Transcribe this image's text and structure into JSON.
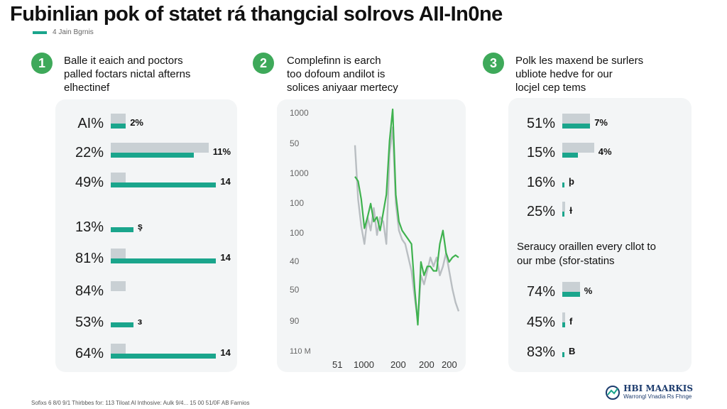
{
  "header": {
    "title": "Fubinlian pok of statet rá thangcial solrovs AII-In0ne",
    "subtitle": "4 Jain Bgrnis"
  },
  "sections": [
    {
      "number": "1",
      "heading": "Balle it eaich and poctors\npalled foctars nictal afterns\nelhectinef"
    },
    {
      "number": "2",
      "heading": "Complefinn is earch\ntoo dofoum andilot is\nsolices aniyaar mertecy"
    },
    {
      "number": "3",
      "heading": "Polk les maxend be surlers\nubliote hedve for our\nlocjel cep tems"
    }
  ],
  "note": "Seraucy oraillen every cllot to\nour mbe (sfor-statins",
  "footer": "Sofixs 6 8/0 9/1 Thirbbes for: 113 Tiloat Al Inthosive: Aulk 9/4... 15 00 51/0F AB Farnios",
  "logo": {
    "name": "HBI MAARKIS",
    "tagline": "Warrongl Vnadia Rs Fhnge"
  },
  "colors": {
    "accent": "#1aa58c",
    "badge": "#3ea95a",
    "bar_back": "#c9d0d4",
    "line_green": "#3fb24f",
    "line_gray": "#b9bec2",
    "panel": "#f3f5f6"
  },
  "chart_data": [
    {
      "type": "bar",
      "categories": [
        "AI%",
        "22%",
        "49%",
        "13%",
        "81%",
        "84%",
        "53%",
        "64%"
      ],
      "values": [
        2,
        11,
        14,
        3,
        14,
        0,
        3,
        14
      ],
      "value_labels": [
        "2%",
        "11%",
        "14",
        "ş",
        "14",
        "",
        "з",
        "14"
      ],
      "background_values": [
        2,
        13,
        2,
        0,
        2,
        2,
        0,
        2
      ]
    },
    {
      "type": "line",
      "x_ticks": [
        "51",
        "1000",
        "200",
        "200",
        "200"
      ],
      "y_ticks": [
        "1000",
        "50",
        "1000",
        "100",
        "100",
        "40",
        "50",
        "90",
        "110 M"
      ],
      "ylim": [
        0,
        100
      ],
      "series": [
        {
          "values": [
            70,
            68,
            60,
            47,
            52,
            58,
            50,
            52,
            46,
            54,
            62,
            86,
            100,
            62,
            50,
            46,
            44,
            42,
            40,
            20,
            4,
            32,
            26,
            30,
            30,
            28,
            28,
            40,
            46,
            36,
            32,
            34,
            35,
            34
          ]
        },
        {
          "values": [
            84,
            60,
            48,
            40,
            52,
            46,
            56,
            44,
            52,
            50,
            40,
            80,
            92,
            58,
            46,
            42,
            40,
            34,
            28,
            16,
            6,
            26,
            22,
            28,
            34,
            30,
            34,
            26,
            30,
            36,
            28,
            20,
            14,
            10
          ]
        }
      ]
    },
    {
      "type": "bar",
      "categories": [
        "51%",
        "15%",
        "16%",
        "25%"
      ],
      "values": [
        7,
        4,
        0.3,
        0.6
      ],
      "value_labels": [
        "7%",
        "4%",
        "þ",
        "ɫ"
      ],
      "background_values": [
        7,
        8,
        0,
        0.6
      ]
    },
    {
      "type": "bar",
      "categories": [
        "74%",
        "45%",
        "83%"
      ],
      "values": [
        4,
        0.6,
        0.4
      ],
      "value_labels": [
        "%",
        "f",
        "B"
      ],
      "background_values": [
        4,
        0.6,
        0
      ]
    }
  ]
}
